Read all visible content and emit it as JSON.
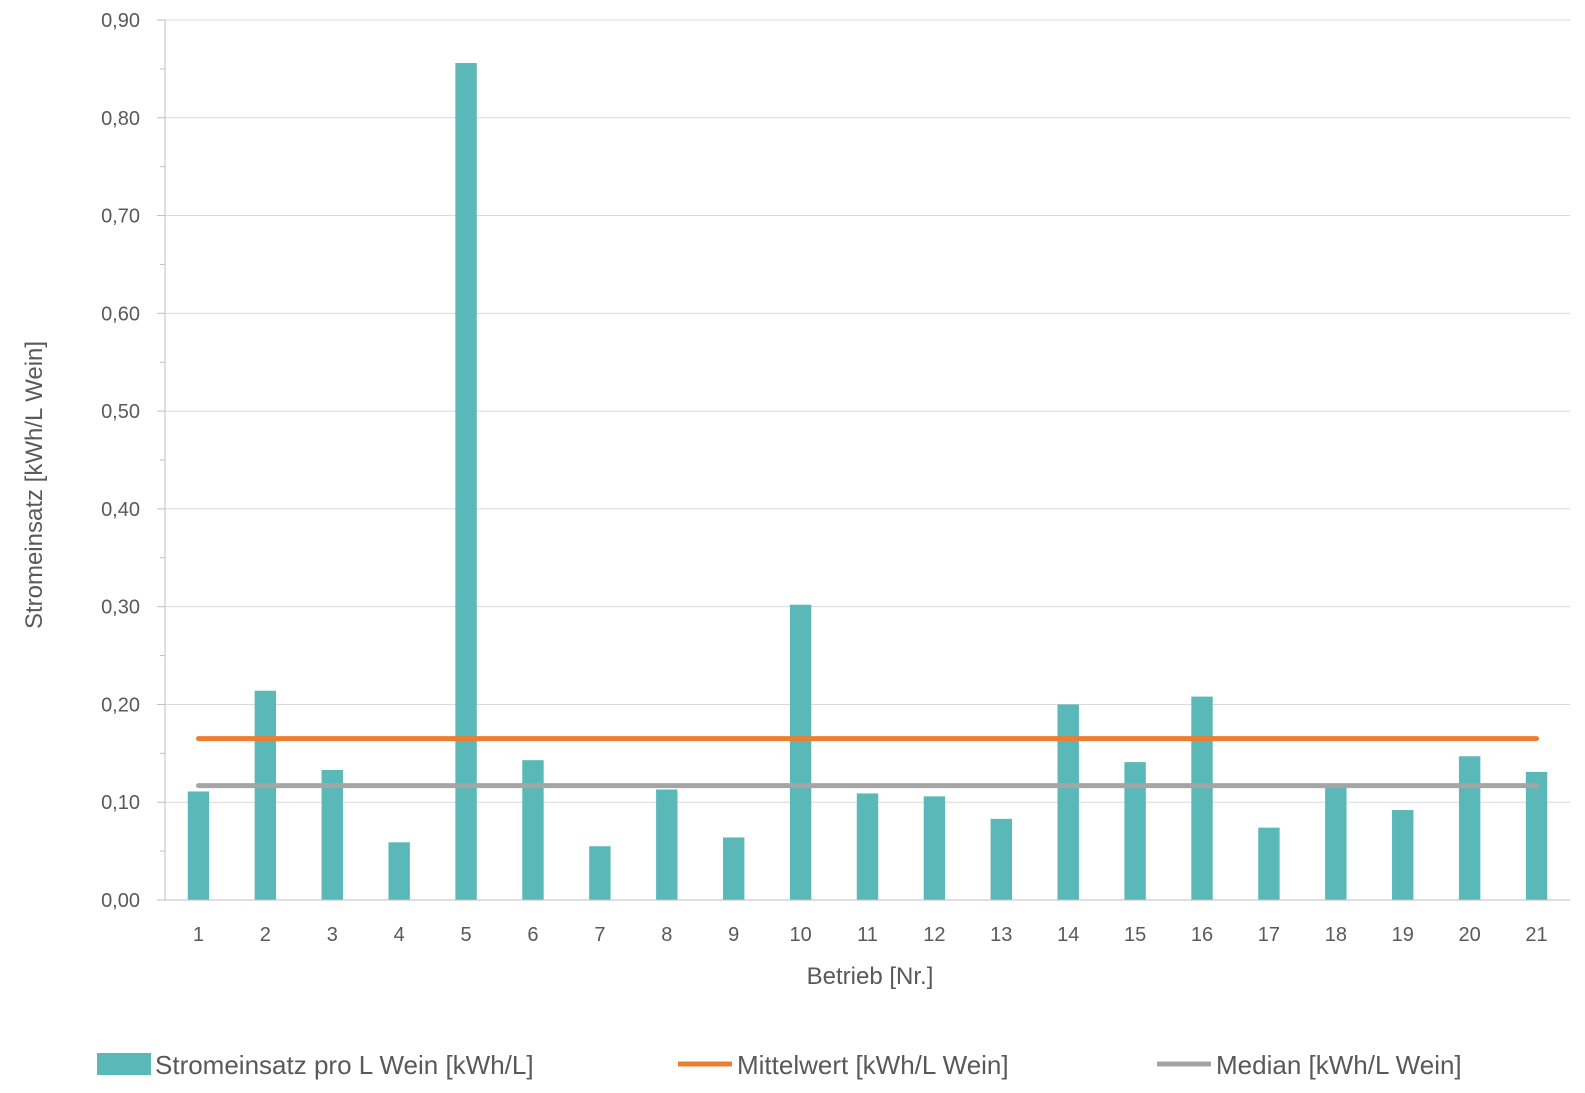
{
  "chart_data": {
    "type": "bar",
    "title": "",
    "xlabel": "Betrieb [Nr.]",
    "ylabel": "Stromeinsatz [kWh/L Wein]",
    "ylim": [
      0,
      0.9
    ],
    "yticks": [
      "0,00",
      "0,10",
      "0,20",
      "0,30",
      "0,40",
      "0,50",
      "0,60",
      "0,70",
      "0,80",
      "0,90"
    ],
    "categories": [
      "1",
      "2",
      "3",
      "4",
      "5",
      "6",
      "7",
      "8",
      "9",
      "10",
      "11",
      "12",
      "13",
      "14",
      "15",
      "16",
      "17",
      "18",
      "19",
      "20",
      "21"
    ],
    "series": [
      {
        "name": "Stromeinsatz pro L Wein [kWh/L]",
        "type": "bar",
        "color": "#5bb8b8",
        "values": [
          0.111,
          0.214,
          0.133,
          0.059,
          0.856,
          0.143,
          0.055,
          0.113,
          0.064,
          0.302,
          0.109,
          0.106,
          0.083,
          0.2,
          0.141,
          0.208,
          0.074,
          0.117,
          0.092,
          0.147,
          0.131
        ]
      },
      {
        "name": "Mittelwert [kWh/L Wein]",
        "type": "line",
        "color": "#ed7d31",
        "value": 0.165
      },
      {
        "name": "Median [kWh/L Wein]",
        "type": "line",
        "color": "#a5a5a5",
        "value": 0.117
      }
    ],
    "grid": true,
    "legend_position": "bottom"
  }
}
